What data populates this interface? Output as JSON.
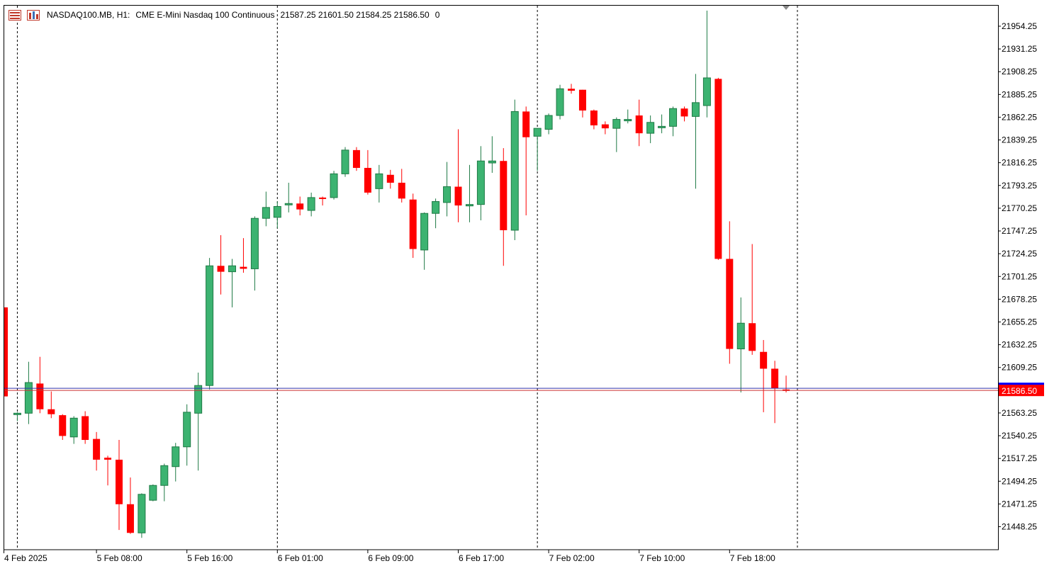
{
  "header": {
    "symbol": "NASDAQ100.MB, H1:",
    "description": "CME E-Mini Nasdaq 100 Continuous",
    "ohlc": "21587.25 21601.50 21584.25 21586.50",
    "extra": "0"
  },
  "price_label": {
    "value": "21586.50",
    "color": "#ff0000"
  },
  "colors": {
    "bull": "#3cb371",
    "bear": "#ff0000",
    "bid_line": "#cc3333",
    "ask_line": "#3333aa",
    "ask_tag": "#0000ff",
    "grid_vline": "#000000"
  },
  "chart_data": {
    "type": "candlestick",
    "timeframe": "H1",
    "ylim": [
      21425,
      21975
    ],
    "y_ticks": [
      "21954.25",
      "21931.25",
      "21908.25",
      "21885.25",
      "21862.25",
      "21839.25",
      "21816.25",
      "21793.25",
      "21770.25",
      "21747.25",
      "21724.25",
      "21701.25",
      "21678.25",
      "21655.25",
      "21632.25",
      "21609.25",
      "21563.25",
      "21540.25",
      "21517.25",
      "21494.25",
      "21471.25",
      "21448.25"
    ],
    "x_labels": [
      "4 Feb 2025",
      "5 Feb 08:00",
      "5 Feb 16:00",
      "6 Feb 01:00",
      "6 Feb 09:00",
      "6 Feb 17:00",
      "7 Feb 02:00",
      "7 Feb 10:00",
      "7 Feb 18:00"
    ],
    "session_separators": [
      "4 Feb 2025",
      "6 Feb 01:00",
      "7 Feb 02:00"
    ],
    "candles": [
      {
        "o": 21670,
        "h": 21670,
        "l": 21580,
        "c": 21580
      },
      {
        "o": 21562,
        "h": 21564,
        "l": 21555,
        "c": 21563
      },
      {
        "o": 21563,
        "h": 21615,
        "l": 21552,
        "c": 21594
      },
      {
        "o": 21593,
        "h": 21620,
        "l": 21563,
        "c": 21567
      },
      {
        "o": 21567,
        "h": 21585,
        "l": 21558,
        "c": 21562
      },
      {
        "o": 21561,
        "h": 21562,
        "l": 21536,
        "c": 21540
      },
      {
        "o": 21539,
        "h": 21560,
        "l": 21532,
        "c": 21558
      },
      {
        "o": 21560,
        "h": 21565,
        "l": 21532,
        "c": 21536
      },
      {
        "o": 21537,
        "h": 21544,
        "l": 21505,
        "c": 21516
      },
      {
        "o": 21518,
        "h": 21520,
        "l": 21490,
        "c": 21516
      },
      {
        "o": 21516,
        "h": 21536,
        "l": 21445,
        "c": 21471
      },
      {
        "o": 21471,
        "h": 21498,
        "l": 21441,
        "c": 21442
      },
      {
        "o": 21442,
        "h": 21482,
        "l": 21437,
        "c": 21481
      },
      {
        "o": 21475,
        "h": 21491,
        "l": 21474,
        "c": 21490
      },
      {
        "o": 21490,
        "h": 21512,
        "l": 21474,
        "c": 21510
      },
      {
        "o": 21509,
        "h": 21533,
        "l": 21494,
        "c": 21529
      },
      {
        "o": 21529,
        "h": 21572,
        "l": 21510,
        "c": 21564
      },
      {
        "o": 21563,
        "h": 21604,
        "l": 21505,
        "c": 21591
      },
      {
        "o": 21591,
        "h": 21720,
        "l": 21587,
        "c": 21712
      },
      {
        "o": 21712,
        "h": 21743,
        "l": 21683,
        "c": 21706
      },
      {
        "o": 21706,
        "h": 21719,
        "l": 21670,
        "c": 21712
      },
      {
        "o": 21711,
        "h": 21740,
        "l": 21705,
        "c": 21709
      },
      {
        "o": 21709,
        "h": 21762,
        "l": 21687,
        "c": 21760
      },
      {
        "o": 21760,
        "h": 21787,
        "l": 21752,
        "c": 21771
      },
      {
        "o": 21761,
        "h": 21777,
        "l": 21750,
        "c": 21772
      },
      {
        "o": 21774,
        "h": 21796,
        "l": 21766,
        "c": 21775
      },
      {
        "o": 21775,
        "h": 21782,
        "l": 21763,
        "c": 21769
      },
      {
        "o": 21768,
        "h": 21786,
        "l": 21762,
        "c": 21781
      },
      {
        "o": 21781,
        "h": 21782,
        "l": 21773,
        "c": 21780
      },
      {
        "o": 21781,
        "h": 21808,
        "l": 21779,
        "c": 21805
      },
      {
        "o": 21805,
        "h": 21832,
        "l": 21802,
        "c": 21829
      },
      {
        "o": 21829,
        "h": 21832,
        "l": 21808,
        "c": 21811
      },
      {
        "o": 21811,
        "h": 21829,
        "l": 21784,
        "c": 21786
      },
      {
        "o": 21790,
        "h": 21814,
        "l": 21776,
        "c": 21805
      },
      {
        "o": 21804,
        "h": 21809,
        "l": 21790,
        "c": 21796
      },
      {
        "o": 21796,
        "h": 21810,
        "l": 21776,
        "c": 21780
      },
      {
        "o": 21779,
        "h": 21785,
        "l": 21720,
        "c": 21729
      },
      {
        "o": 21728,
        "h": 21766,
        "l": 21708,
        "c": 21765
      },
      {
        "o": 21765,
        "h": 21780,
        "l": 21750,
        "c": 21777
      },
      {
        "o": 21776,
        "h": 21817,
        "l": 21762,
        "c": 21792
      },
      {
        "o": 21792,
        "h": 21850,
        "l": 21756,
        "c": 21773
      },
      {
        "o": 21773,
        "h": 21814,
        "l": 21756,
        "c": 21774
      },
      {
        "o": 21774,
        "h": 21833,
        "l": 21758,
        "c": 21818
      },
      {
        "o": 21816,
        "h": 21843,
        "l": 21806,
        "c": 21818
      },
      {
        "o": 21818,
        "h": 21831,
        "l": 21712,
        "c": 21748
      },
      {
        "o": 21748,
        "h": 21880,
        "l": 21738,
        "c": 21868
      },
      {
        "o": 21868,
        "h": 21873,
        "l": 21763,
        "c": 21842
      },
      {
        "o": 21843,
        "h": 21850,
        "l": 21808,
        "c": 21851
      },
      {
        "o": 21850,
        "h": 21866,
        "l": 21845,
        "c": 21864
      },
      {
        "o": 21864,
        "h": 21895,
        "l": 21860,
        "c": 21891
      },
      {
        "o": 21891,
        "h": 21896,
        "l": 21886,
        "c": 21889
      },
      {
        "o": 21890,
        "h": 21890,
        "l": 21862,
        "c": 21869
      },
      {
        "o": 21869,
        "h": 21870,
        "l": 21850,
        "c": 21854
      },
      {
        "o": 21855,
        "h": 21858,
        "l": 21845,
        "c": 21851
      },
      {
        "o": 21851,
        "h": 21862,
        "l": 21827,
        "c": 21860
      },
      {
        "o": 21859,
        "h": 21870,
        "l": 21856,
        "c": 21860
      },
      {
        "o": 21864,
        "h": 21880,
        "l": 21833,
        "c": 21846
      },
      {
        "o": 21846,
        "h": 21864,
        "l": 21836,
        "c": 21857
      },
      {
        "o": 21853,
        "h": 21865,
        "l": 21846,
        "c": 21853
      },
      {
        "o": 21853,
        "h": 21873,
        "l": 21843,
        "c": 21871
      },
      {
        "o": 21871,
        "h": 21873,
        "l": 21858,
        "c": 21863
      },
      {
        "o": 21863,
        "h": 21906,
        "l": 21790,
        "c": 21877
      },
      {
        "o": 21874,
        "h": 21970,
        "l": 21862,
        "c": 21902
      },
      {
        "o": 21901,
        "h": 21902,
        "l": 21718,
        "c": 21719
      },
      {
        "o": 21719,
        "h": 21757,
        "l": 21613,
        "c": 21628
      },
      {
        "o": 21628,
        "h": 21680,
        "l": 21584,
        "c": 21654
      },
      {
        "o": 21654,
        "h": 21734,
        "l": 21622,
        "c": 21626
      },
      {
        "o": 21625,
        "h": 21637,
        "l": 21564,
        "c": 21608
      },
      {
        "o": 21608,
        "h": 21616,
        "l": 21553,
        "c": 21588
      },
      {
        "o": 21587,
        "h": 21601,
        "l": 21584,
        "c": 21586
      }
    ]
  }
}
